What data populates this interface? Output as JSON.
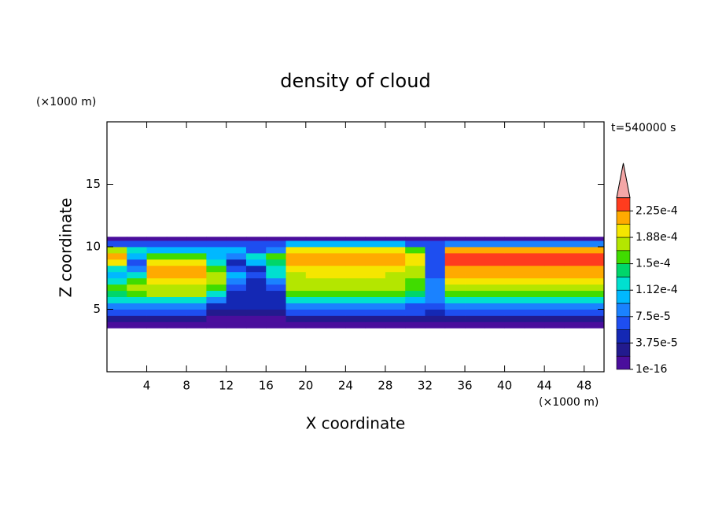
{
  "chart_data": {
    "type": "contour",
    "title": "density of cloud",
    "xlabel": "X coordinate",
    "ylabel": "Z coordinate",
    "x_unit": "(×1000 m)",
    "y_unit": "(×1000 m)",
    "annotation": "t=540000 s",
    "xlim": [
      0,
      50
    ],
    "ylim": [
      0,
      20
    ],
    "xticks": [
      4,
      8,
      12,
      16,
      20,
      24,
      28,
      32,
      36,
      40,
      44,
      48
    ],
    "yticks": [
      5,
      10,
      15
    ],
    "x_edges": [
      0,
      2,
      4,
      6,
      8,
      10,
      12,
      14,
      16,
      18,
      20,
      22,
      24,
      26,
      28,
      30,
      32,
      34,
      36,
      38,
      40,
      42,
      44,
      46,
      48,
      50
    ],
    "z_edges": [
      3.5,
      4,
      4.5,
      5,
      5.5,
      6,
      6.5,
      7,
      7.5,
      8,
      8.5,
      9,
      9.5,
      10,
      10.5,
      10.8
    ],
    "values": [
      [
        1e-05,
        1e-05,
        1e-05,
        1e-05,
        1e-05,
        8e-06,
        8e-06,
        8e-06,
        8e-06,
        1e-05,
        1e-05,
        1e-05,
        1e-05,
        1e-05,
        1e-05,
        1e-05,
        1e-05,
        1e-05,
        1e-05,
        1e-05,
        1e-05,
        1e-05,
        1e-05,
        1e-05,
        1e-05
      ],
      [
        3e-05,
        3e-05,
        3e-05,
        3e-05,
        3e-05,
        1.5e-05,
        1.5e-05,
        1.5e-05,
        1.5e-05,
        3e-05,
        3e-05,
        3e-05,
        3e-05,
        3e-05,
        3e-05,
        3e-05,
        2e-05,
        3e-05,
        3e-05,
        3e-05,
        3e-05,
        3e-05,
        3e-05,
        3e-05,
        3e-05
      ],
      [
        6e-05,
        6e-05,
        6e-05,
        6e-05,
        6e-05,
        3e-05,
        3e-05,
        3e-05,
        3e-05,
        6e-05,
        6e-05,
        6e-05,
        6e-05,
        6e-05,
        6e-05,
        6e-05,
        4e-05,
        6e-05,
        6e-05,
        6e-05,
        6e-05,
        6e-05,
        6e-05,
        6e-05,
        6e-05
      ],
      [
        9e-05,
        9e-05,
        9e-05,
        9e-05,
        9e-05,
        4e-05,
        4e-05,
        4e-05,
        4e-05,
        9e-05,
        9e-05,
        9e-05,
        9e-05,
        9e-05,
        9e-05,
        6e-05,
        6e-05,
        9e-05,
        9e-05,
        9e-05,
        9e-05,
        9e-05,
        9e-05,
        9e-05,
        9e-05
      ],
      [
        0.00013,
        0.00013,
        0.00013,
        0.00013,
        0.00013,
        8e-05,
        4e-05,
        4e-05,
        4e-05,
        0.00013,
        0.00013,
        0.00013,
        0.00013,
        0.00013,
        0.00013,
        0.0001,
        8e-05,
        0.00013,
        0.00013,
        0.00013,
        0.00013,
        0.00013,
        0.00013,
        0.00013,
        0.00013
      ],
      [
        0.00014,
        0.00015,
        0.00017,
        0.00017,
        0.00017,
        0.00012,
        5e-05,
        5e-05,
        5e-05,
        0.00016,
        0.00016,
        0.00016,
        0.00016,
        0.00016,
        0.00016,
        0.00014,
        9e-05,
        0.00016,
        0.00016,
        0.00016,
        0.00016,
        0.00016,
        0.00016,
        0.00016,
        0.00016
      ],
      [
        0.00016,
        0.00017,
        0.00018,
        0.00018,
        0.00018,
        0.00015,
        6e-05,
        4e-05,
        6e-05,
        0.00017,
        0.00017,
        0.00017,
        0.00017,
        0.00017,
        0.00017,
        0.00016,
        9e-05,
        0.00018,
        0.00018,
        0.00018,
        0.00018,
        0.00018,
        0.00018,
        0.00018,
        0.00018
      ],
      [
        0.00013,
        0.00016,
        0.0002,
        0.0002,
        0.0002,
        0.00017,
        8e-05,
        5e-05,
        9e-05,
        0.00017,
        0.00018,
        0.00018,
        0.00018,
        0.00018,
        0.00017,
        0.00016,
        8e-05,
        0.0002,
        0.0002,
        0.0002,
        0.00019,
        0.0002,
        0.0002,
        0.0002,
        0.0002
      ],
      [
        0.0001,
        0.00013,
        0.00021,
        0.00021,
        0.00021,
        0.00018,
        0.0001,
        6e-05,
        0.00012,
        0.00017,
        0.00019,
        0.00019,
        0.00019,
        0.00019,
        0.00018,
        0.00017,
        7e-05,
        0.00021,
        0.00021,
        0.00021,
        0.00021,
        0.00021,
        0.00021,
        0.00021,
        0.00021
      ],
      [
        0.00012,
        8e-05,
        0.00021,
        0.00021,
        0.00021,
        0.00016,
        7e-05,
        5e-05,
        0.00013,
        0.0002,
        0.0002,
        0.0002,
        0.0002,
        0.0002,
        0.0002,
        0.00018,
        6e-05,
        0.00022,
        0.00022,
        0.00022,
        0.00022,
        0.00022,
        0.00022,
        0.00022,
        0.00022
      ],
      [
        0.0002,
        6e-05,
        0.0002,
        0.0002,
        0.0002,
        0.00012,
        5e-05,
        0.0001,
        0.00014,
        0.00021,
        0.00021,
        0.00021,
        0.00021,
        0.00021,
        0.00021,
        0.00019,
        6e-05,
        0.00023,
        0.00023,
        0.00023,
        0.00023,
        0.00023,
        0.00023,
        0.00023,
        0.00023
      ],
      [
        0.00021,
        0.0001,
        0.00015,
        0.00016,
        0.00016,
        0.0001,
        8e-05,
        0.00012,
        0.00015,
        0.00022,
        0.00022,
        0.00022,
        0.00022,
        0.00022,
        0.00022,
        0.0002,
        6e-05,
        0.00023,
        0.00023,
        0.00023,
        0.00023,
        0.00023,
        0.00023,
        0.00023,
        0.00023
      ],
      [
        0.00018,
        0.00012,
        0.00011,
        0.00011,
        0.00011,
        0.0001,
        0.0001,
        6e-05,
        9e-05,
        0.0002,
        0.0002,
        0.0002,
        0.0002,
        0.0002,
        0.0002,
        0.00016,
        6e-05,
        0.00021,
        0.00021,
        0.00021,
        0.00021,
        0.00021,
        0.00021,
        0.00021,
        0.00021
      ],
      [
        7e-05,
        7e-05,
        7e-05,
        7e-05,
        7e-05,
        7e-05,
        7e-05,
        7e-05,
        7e-05,
        0.00011,
        0.00011,
        0.00011,
        0.00011,
        0.00011,
        0.00011,
        7e-05,
        7e-05,
        9e-05,
        9e-05,
        9e-05,
        9e-05,
        9e-05,
        9e-05,
        9e-05,
        9e-05
      ],
      [
        1e-05,
        1e-05,
        1e-05,
        1e-05,
        1e-05,
        1e-05,
        1e-05,
        1e-05,
        1e-05,
        1e-05,
        1e-05,
        1e-05,
        1e-05,
        1e-05,
        1e-05,
        1e-05,
        1e-05,
        1e-05,
        1e-05,
        1e-05,
        1e-05,
        1e-05,
        1e-05,
        1e-05,
        1e-05
      ]
    ],
    "colorbar": {
      "levels": [
        1e-16,
        1.875e-05,
        3.75e-05,
        5.625e-05,
        7.5e-05,
        9.375e-05,
        0.0001125,
        0.00013125,
        0.00015,
        0.00016875,
        0.0001875,
        0.00020625,
        0.000225
      ],
      "colors": [
        "#4a0e9c",
        "#221a8e",
        "#1428b4",
        "#1e4ef0",
        "#1a82ff",
        "#00b8ff",
        "#00e0d0",
        "#00d66a",
        "#40dc00",
        "#b4e600",
        "#f5e600",
        "#ffaa00",
        "#ff3c1e"
      ],
      "extend_color": "#f4a6a6",
      "ticks": [
        {
          "value": 1e-16,
          "label": "1e-16"
        },
        {
          "value": 3.75e-05,
          "label": "3.75e-5"
        },
        {
          "value": 7.5e-05,
          "label": "7.5e-5"
        },
        {
          "value": 0.0001125,
          "label": "1.12e-4"
        },
        {
          "value": 0.00015,
          "label": "1.5e-4"
        },
        {
          "value": 0.0001875,
          "label": "1.88e-4"
        },
        {
          "value": 0.000225,
          "label": "2.25e-4"
        }
      ]
    }
  }
}
